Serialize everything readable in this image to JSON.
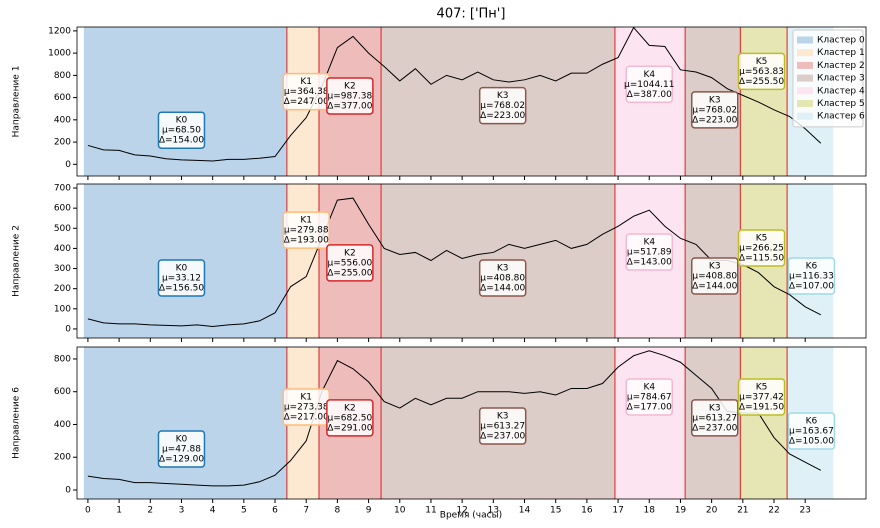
{
  "title": "407: ['Пн']",
  "xlabel": "Время (часы)",
  "xlim": [
    -0.35,
    24.95
  ],
  "xticks": [
    0,
    1,
    2,
    3,
    4,
    5,
    6,
    7,
    8,
    9,
    10,
    11,
    12,
    13,
    14,
    15,
    16,
    17,
    18,
    19,
    20,
    21,
    22,
    23
  ],
  "x": [
    0,
    0.5,
    1,
    1.5,
    2,
    2.5,
    3,
    3.5,
    4,
    4.5,
    5,
    5.5,
    6,
    6.5,
    7,
    7.5,
    8,
    8.5,
    9,
    9.5,
    10,
    10.5,
    11,
    11.5,
    12,
    12.5,
    13,
    13.5,
    14,
    14.5,
    15,
    15.5,
    16,
    16.5,
    17,
    17.5,
    18,
    18.5,
    19,
    19.5,
    20,
    20.5,
    21,
    21.5,
    22,
    22.5,
    23,
    23.5
  ],
  "legend_loc": "upper right",
  "clusters": [
    {
      "name": "Кластер 0",
      "color": "#bcd4ea",
      "edge": "#1f77b4"
    },
    {
      "name": "Кластер 1",
      "color": "#fde8d2",
      "edge": "#ffbb78"
    },
    {
      "name": "Кластер 2",
      "color": "#efbcbc",
      "edge": "#d62728"
    },
    {
      "name": "Кластер 3",
      "color": "#dccdc9",
      "edge": "#8c564b"
    },
    {
      "name": "Кластер 4",
      "color": "#fce4f0",
      "edge": "#f7b6d2"
    },
    {
      "name": "Кластер 5",
      "color": "#e6e6b4",
      "edge": "#bcbd22"
    },
    {
      "name": "Кластер 6",
      "color": "#dff1f6",
      "edge": "#9edae5"
    }
  ],
  "regions": [
    {
      "cluster": 0,
      "start": -0.13,
      "end": 6.38
    },
    {
      "cluster": 1,
      "start": 6.38,
      "end": 7.41
    },
    {
      "cluster": 2,
      "start": 7.41,
      "end": 9.4
    },
    {
      "cluster": 3,
      "start": 9.4,
      "end": 16.9
    },
    {
      "cluster": 4,
      "start": 16.9,
      "end": 19.15
    },
    {
      "cluster": 3,
      "start": 19.15,
      "end": 20.92
    },
    {
      "cluster": 5,
      "start": 20.92,
      "end": 22.42
    },
    {
      "cluster": 6,
      "start": 22.42,
      "end": 23.9
    }
  ],
  "chart_data": [
    {
      "type": "line",
      "ylabel": "Направление 1",
      "ylim": [
        -105,
        1235
      ],
      "yticks": [
        0,
        200,
        400,
        600,
        800,
        1000,
        1200
      ],
      "color": "#000000",
      "values": [
        170,
        130,
        125,
        85,
        75,
        50,
        40,
        35,
        30,
        45,
        45,
        55,
        70,
        260,
        420,
        700,
        1050,
        1150,
        1000,
        880,
        750,
        860,
        720,
        800,
        760,
        830,
        760,
        740,
        760,
        800,
        750,
        820,
        820,
        900,
        960,
        1230,
        1070,
        1060,
        850,
        830,
        780,
        680,
        620,
        560,
        490,
        430,
        320,
        190
      ],
      "annotations": [
        {
          "cluster": 0,
          "x": 3,
          "y": 307,
          "lines": [
            "K0",
            "μ=68.50",
            "Δ=154.00"
          ]
        },
        {
          "cluster": 1,
          "x": 7,
          "y": 654,
          "lines": [
            "K1",
            "μ=364.38",
            "Δ=247.00"
          ]
        },
        {
          "cluster": 2,
          "x": 8.4,
          "y": 615,
          "lines": [
            "K2",
            "μ=987.38",
            "Δ=377.00"
          ]
        },
        {
          "cluster": 3,
          "x": 13.3,
          "y": 528,
          "lines": [
            "K3",
            "μ=768.02",
            "Δ=223.00"
          ]
        },
        {
          "cluster": 4,
          "x": 18,
          "y": 720,
          "lines": [
            "K4",
            "μ=1044.11",
            "Δ=387.00"
          ]
        },
        {
          "cluster": 3,
          "x": 20.1,
          "y": 490,
          "lines": [
            "K3",
            "μ=768.02",
            "Δ=223.00"
          ]
        },
        {
          "cluster": 5,
          "x": 21.6,
          "y": 836,
          "lines": [
            "K5",
            "μ=563.83",
            "Δ=255.50"
          ]
        }
      ]
    },
    {
      "type": "line",
      "ylabel": "Направление 2",
      "ylim": [
        -45,
        720
      ],
      "yticks": [
        0,
        100,
        200,
        300,
        400,
        500,
        600,
        700
      ],
      "color": "#000000",
      "values": [
        50,
        30,
        25,
        25,
        20,
        18,
        15,
        20,
        12,
        20,
        25,
        40,
        80,
        210,
        260,
        450,
        640,
        650,
        520,
        400,
        370,
        380,
        340,
        390,
        350,
        370,
        380,
        420,
        400,
        420,
        440,
        400,
        420,
        470,
        510,
        560,
        590,
        510,
        450,
        420,
        340,
        340,
        320,
        280,
        210,
        170,
        110,
        70
      ],
      "annotations": [
        {
          "cluster": 0,
          "x": 3,
          "y": 253,
          "lines": [
            "K0",
            "μ=33.12",
            "Δ=156.50"
          ]
        },
        {
          "cluster": 1,
          "x": 7,
          "y": 491,
          "lines": [
            "K1",
            "μ=279.88",
            "Δ=193.00"
          ]
        },
        {
          "cluster": 2,
          "x": 8.4,
          "y": 328,
          "lines": [
            "K2",
            "μ=556.00",
            "Δ=255.00"
          ]
        },
        {
          "cluster": 3,
          "x": 13.3,
          "y": 253,
          "lines": [
            "K3",
            "μ=408.80",
            "Δ=144.00"
          ]
        },
        {
          "cluster": 4,
          "x": 18,
          "y": 382,
          "lines": [
            "K4",
            "μ=517.89",
            "Δ=143.00"
          ]
        },
        {
          "cluster": 3,
          "x": 20.1,
          "y": 263,
          "lines": [
            "K3",
            "μ=408.80",
            "Δ=144.00"
          ]
        },
        {
          "cluster": 5,
          "x": 21.6,
          "y": 402,
          "lines": [
            "K5",
            "μ=266.25",
            "Δ=115.50"
          ]
        },
        {
          "cluster": 6,
          "x": 23.2,
          "y": 263,
          "lines": [
            "K6",
            "μ=116.33",
            "Δ=107.00"
          ]
        }
      ]
    },
    {
      "type": "line",
      "ylabel": "Направление 6",
      "ylim": [
        -55,
        873
      ],
      "yticks": [
        0,
        200,
        400,
        600,
        800
      ],
      "color": "#000000",
      "values": [
        85,
        70,
        65,
        45,
        45,
        40,
        35,
        30,
        25,
        25,
        30,
        50,
        90,
        180,
        300,
        600,
        790,
        740,
        660,
        540,
        500,
        560,
        520,
        560,
        560,
        600,
        600,
        600,
        590,
        600,
        580,
        620,
        620,
        650,
        750,
        820,
        850,
        820,
        780,
        700,
        620,
        480,
        470,
        470,
        320,
        220,
        170,
        120
      ],
      "annotations": [
        {
          "cluster": 0,
          "x": 3,
          "y": 250,
          "lines": [
            "K0",
            "μ=47.88",
            "Δ=129.00"
          ]
        },
        {
          "cluster": 1,
          "x": 7,
          "y": 507,
          "lines": [
            "K1",
            "μ=273.38",
            "Δ=217.00"
          ]
        },
        {
          "cluster": 2,
          "x": 8.4,
          "y": 440,
          "lines": [
            "K2",
            "μ=682.50",
            "Δ=291.00"
          ]
        },
        {
          "cluster": 3,
          "x": 13.3,
          "y": 391,
          "lines": [
            "K3",
            "μ=613.27",
            "Δ=237.00"
          ]
        },
        {
          "cluster": 4,
          "x": 18,
          "y": 568,
          "lines": [
            "K4",
            "μ=784.67",
            "Δ=177.00"
          ]
        },
        {
          "cluster": 3,
          "x": 20.1,
          "y": 440,
          "lines": [
            "K3",
            "μ=613.27",
            "Δ=237.00"
          ]
        },
        {
          "cluster": 5,
          "x": 21.6,
          "y": 568,
          "lines": [
            "K5",
            "μ=377.42",
            "Δ=191.50"
          ]
        },
        {
          "cluster": 6,
          "x": 23.2,
          "y": 360,
          "lines": [
            "K6",
            "μ=163.67",
            "Δ=105.00"
          ]
        }
      ]
    }
  ]
}
